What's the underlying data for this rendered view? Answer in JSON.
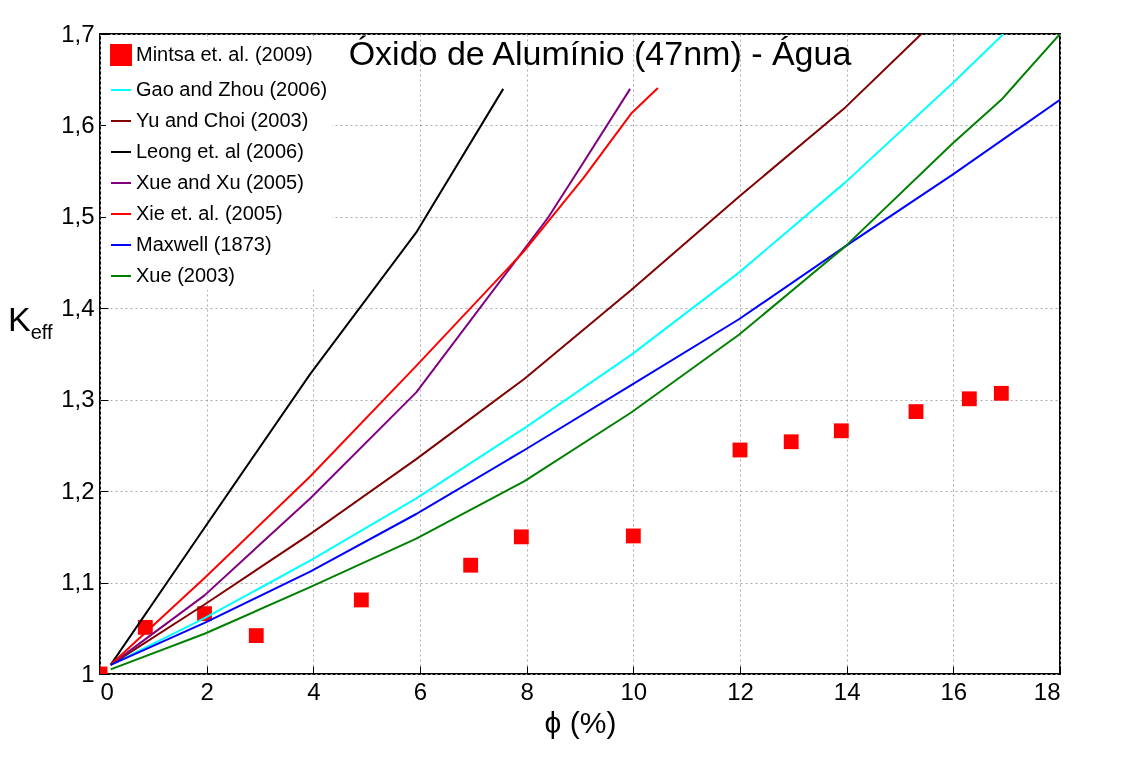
{
  "chart_data": {
    "type": "line",
    "title": "Óxido de Alumínio (47nm) - Água",
    "xlabel": "ϕ  (%)",
    "ylabel": "K$_{eff}$",
    "xlim": [
      0,
      18
    ],
    "xticks": [
      0,
      2,
      4,
      6,
      8,
      10,
      12,
      14,
      16,
      18
    ],
    "ylim": [
      1,
      1.7
    ],
    "yticks": [
      1,
      {
        "value": 1.1,
        "label": "1,1"
      },
      {
        "value": 1.2,
        "label": "1,2"
      },
      {
        "value": 1.3,
        "label": "1,3"
      },
      {
        "value": 1.4,
        "label": "1,4"
      },
      {
        "value": 1.5,
        "label": "1,5"
      },
      {
        "value": 1.6,
        "label": "1,6"
      },
      {
        "value": 1.7,
        "label": "1,7"
      }
    ],
    "grid": true,
    "legend": "top left",
    "series": [
      {
        "name": "Mintsa et. al. (2009)",
        "type": "scatter",
        "marker": "square",
        "color": "#ff0000",
        "x": [
          0,
          0.85,
          1.96,
          2.93,
          4.9,
          6.95,
          7.9,
          10.0,
          12.0,
          12.96,
          13.9,
          15.3,
          16.3,
          16.9
        ],
        "values": [
          1.0,
          1.051,
          1.066,
          1.042,
          1.081,
          1.119,
          1.15,
          1.151,
          1.245,
          1.254,
          1.266,
          1.287,
          1.301,
          1.307
        ]
      },
      {
        "name": "Gao and Zhou (2006)",
        "color": "#00ffff",
        "x": [
          0.2,
          1.96,
          3.94,
          5.93,
          7.96,
          9.96,
          11.98,
          13.98,
          16.0,
          16.94
        ],
        "values": [
          1.01,
          1.061,
          1.124,
          1.192,
          1.269,
          1.349,
          1.439,
          1.538,
          1.647,
          1.7
        ]
      },
      {
        "name": "Yu and Choi (2003)",
        "color": "#800000",
        "x": [
          0.2,
          1.96,
          3.94,
          5.93,
          7.96,
          9.96,
          11.98,
          13.98,
          15.26,
          15.4
        ],
        "values": [
          1.01,
          1.076,
          1.153,
          1.235,
          1.323,
          1.42,
          1.522,
          1.62,
          1.692,
          1.7
        ]
      },
      {
        "name": "Leong et. al (2006)",
        "color": "#000000",
        "x": [
          0.2,
          1.96,
          3.94,
          5.93,
          7.56
        ],
        "values": [
          1.01,
          1.16,
          1.328,
          1.483,
          1.64
        ]
      },
      {
        "name": "Xue and Xu (2005)",
        "color": "#800080",
        "x": [
          0.2,
          1.96,
          3.94,
          5.93,
          8.4,
          9.07,
          9.94
        ],
        "values": [
          1.01,
          1.086,
          1.192,
          1.308,
          1.499,
          1.56,
          1.64
        ]
      },
      {
        "name": "Xie et. al. (2005)",
        "color": "#ff0000",
        "x": [
          0.2,
          1.96,
          3.94,
          5.93,
          7.96,
          9.07,
          9.96,
          10.46
        ],
        "values": [
          1.01,
          1.105,
          1.216,
          1.337,
          1.463,
          1.543,
          1.613,
          1.641
        ]
      },
      {
        "name": "Maxwell (1873)",
        "color": "#0000ff",
        "x": [
          0.2,
          1.96,
          3.94,
          5.93,
          7.96,
          9.96,
          11.98,
          13.98,
          15.98,
          18
        ],
        "values": [
          1.01,
          1.056,
          1.112,
          1.175,
          1.245,
          1.316,
          1.388,
          1.468,
          1.546,
          1.628
        ]
      },
      {
        "name": "Xue (2003)",
        "color": "#008000",
        "x": [
          0.2,
          1.96,
          3.94,
          5.93,
          7.96,
          9.96,
          11.98,
          13.98,
          15.98,
          16.9,
          18
        ],
        "values": [
          1.005,
          1.044,
          1.095,
          1.148,
          1.211,
          1.286,
          1.371,
          1.468,
          1.58,
          1.628,
          1.7
        ]
      }
    ]
  }
}
